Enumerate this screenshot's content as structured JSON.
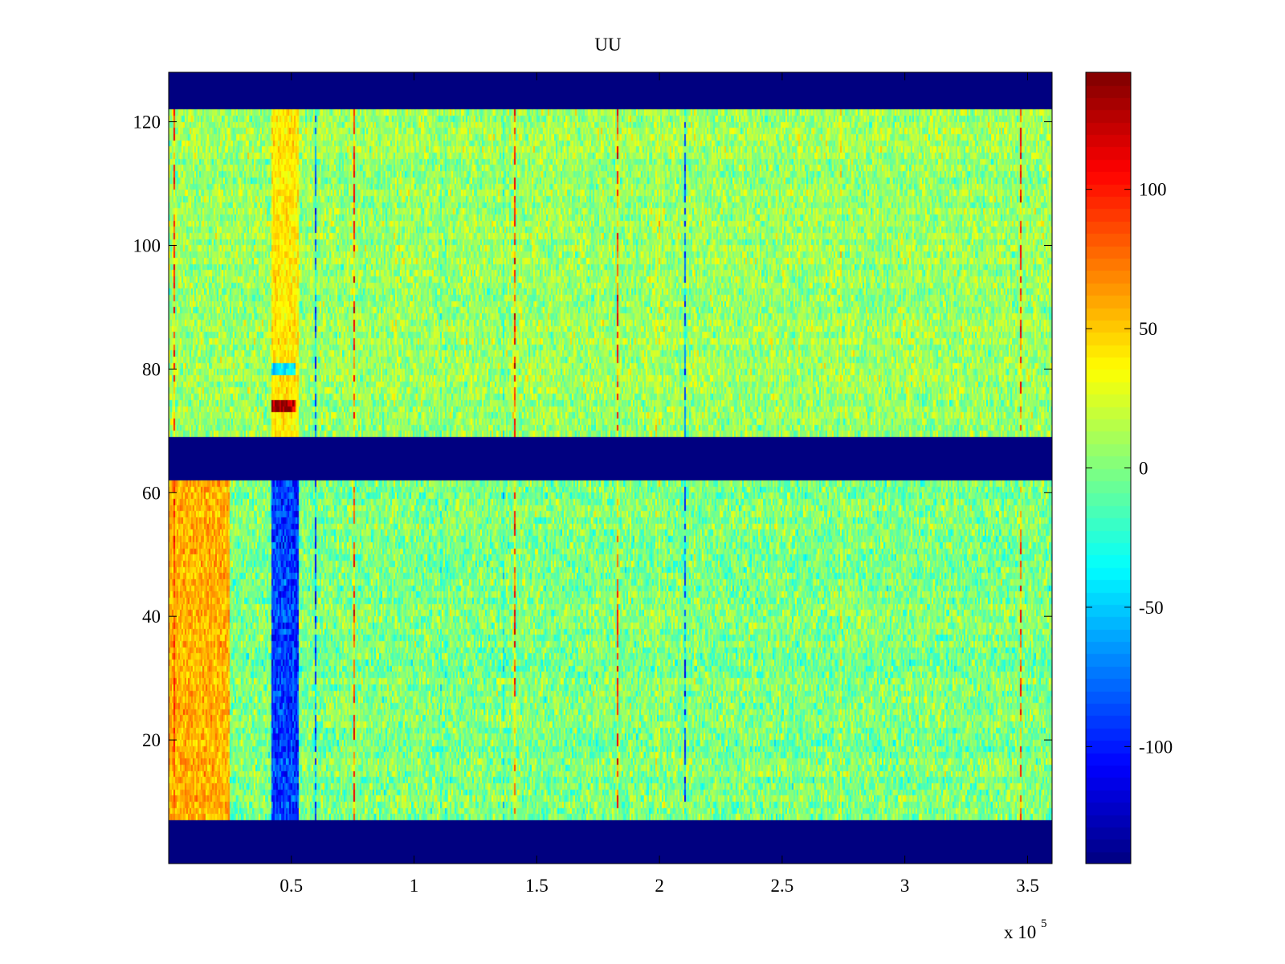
{
  "chart_data": {
    "type": "heatmap",
    "title": "UU",
    "xlabel": "",
    "ylabel": "",
    "x_range": [
      0,
      360000
    ],
    "y_range": [
      0,
      128
    ],
    "x_ticks": [
      50000,
      100000,
      150000,
      200000,
      250000,
      300000,
      350000
    ],
    "x_tick_labels": [
      "0.5",
      "1",
      "1.5",
      "2",
      "2.5",
      "3",
      "3.5"
    ],
    "x_exponent_label": "x 10",
    "x_exponent_power": "5",
    "y_ticks": [
      20,
      40,
      60,
      80,
      100,
      120
    ],
    "y_tick_labels": [
      "20",
      "40",
      "60",
      "80",
      "100",
      "120"
    ],
    "colormap": "jet",
    "color_range": [
      -142,
      142
    ],
    "colorbar": {
      "placement": "right",
      "ticks": [
        -100,
        -50,
        0,
        50,
        100
      ],
      "tick_labels": [
        "-100",
        "-50",
        "0",
        "50",
        "100"
      ]
    },
    "empty_bands": [
      {
        "y_start": 0,
        "y_end": 7,
        "value": -142
      },
      {
        "y_start": 62,
        "y_end": 69,
        "value": -142
      },
      {
        "y_start": 122,
        "y_end": 128,
        "value": -142
      }
    ],
    "data_bands": [
      {
        "y_start": 7,
        "y_end": 62,
        "mean": 0,
        "noise": 26
      },
      {
        "y_start": 69,
        "y_end": 122,
        "mean": 8,
        "noise": 24
      }
    ],
    "features": [
      {
        "x_start": 0,
        "x_end": 25000,
        "y_start": 7,
        "y_end": 62,
        "value": 60
      },
      {
        "x_start": 42000,
        "x_end": 53000,
        "y_start": 7,
        "y_end": 62,
        "value": -95
      },
      {
        "x_start": 42000,
        "x_end": 53000,
        "y_start": 69,
        "y_end": 122,
        "value": 40
      },
      {
        "x_start": 42000,
        "x_end": 52000,
        "y_start": 73,
        "y_end": 75,
        "value": 120
      },
      {
        "x_start": 42000,
        "x_end": 52000,
        "y_start": 79,
        "y_end": 81,
        "value": -60
      }
    ],
    "notes": "Pseudocolor field with two data blocks (rows 7–62 and 69–122) separated by empty rows at the colormap minimum."
  }
}
